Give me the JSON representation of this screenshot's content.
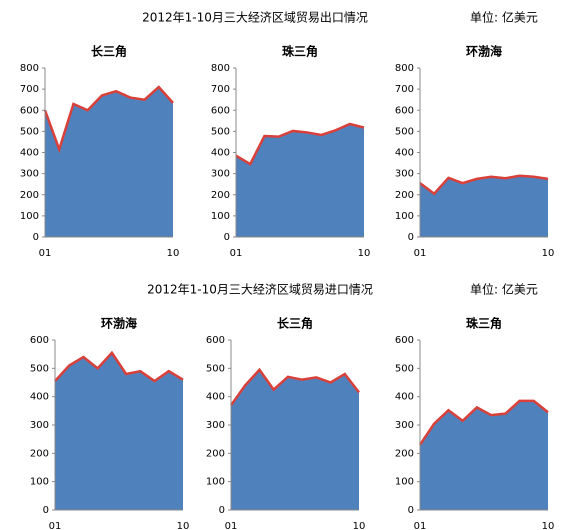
{
  "sections": [
    {
      "title": "2012年1-10月三大经济区域贸易出口情况",
      "unit": "单位:  亿美元"
    },
    {
      "title": "2012年1-10月三大经济区域贸易进口情况",
      "unit": "单位:  亿美元"
    }
  ],
  "chart_data": [
    {
      "type": "area",
      "title": "长三角",
      "categories": [
        "01",
        null,
        null,
        null,
        null,
        null,
        null,
        null,
        null,
        "10"
      ],
      "values": [
        600,
        415,
        630,
        600,
        670,
        690,
        660,
        650,
        710,
        635
      ],
      "color": "#4f81bd",
      "line_color": "#d9403a",
      "ylim": [
        0,
        800
      ],
      "yticks": [
        0,
        100,
        200,
        300,
        400,
        500,
        600,
        700,
        800
      ]
    },
    {
      "type": "area",
      "title": "珠三角",
      "categories": [
        "01",
        null,
        null,
        null,
        null,
        null,
        null,
        null,
        null,
        "10"
      ],
      "values": [
        385,
        345,
        478,
        475,
        502,
        495,
        483,
        505,
        535,
        518
      ],
      "color": "#4f81bd",
      "line_color": "#d9403a",
      "ylim": [
        0,
        800
      ],
      "yticks": [
        0,
        100,
        200,
        300,
        400,
        500,
        600,
        700,
        800
      ]
    },
    {
      "type": "area",
      "title": "环渤海",
      "categories": [
        "01",
        null,
        null,
        null,
        null,
        null,
        null,
        null,
        null,
        "10"
      ],
      "values": [
        255,
        205,
        280,
        255,
        275,
        285,
        278,
        290,
        285,
        275
      ],
      "color": "#4f81bd",
      "line_color": "#d9403a",
      "ylim": [
        0,
        800
      ],
      "yticks": [
        0,
        100,
        200,
        300,
        400,
        500,
        600,
        700,
        800
      ]
    },
    {
      "type": "area",
      "title": "环渤海",
      "categories": [
        "01",
        null,
        null,
        null,
        null,
        null,
        null,
        null,
        null,
        "10"
      ],
      "values": [
        455,
        510,
        540,
        500,
        555,
        480,
        490,
        455,
        490,
        460
      ],
      "color": "#4f81bd",
      "line_color": "#d9403a",
      "ylim": [
        0,
        600
      ],
      "yticks": [
        0,
        100,
        200,
        300,
        400,
        500,
        600
      ]
    },
    {
      "type": "area",
      "title": "长三角",
      "categories": [
        "01",
        null,
        null,
        null,
        null,
        null,
        null,
        null,
        null,
        "10"
      ],
      "values": [
        370,
        440,
        495,
        425,
        470,
        460,
        468,
        450,
        480,
        415
      ],
      "color": "#4f81bd",
      "line_color": "#d9403a",
      "ylim": [
        0,
        600
      ],
      "yticks": [
        0,
        100,
        200,
        300,
        400,
        500,
        600
      ]
    },
    {
      "type": "area",
      "title": "珠三角",
      "categories": [
        "01",
        null,
        null,
        null,
        null,
        null,
        null,
        null,
        null,
        "10"
      ],
      "values": [
        230,
        305,
        352,
        315,
        362,
        335,
        340,
        385,
        385,
        345
      ],
      "color": "#4f81bd",
      "line_color": "#d9403a",
      "ylim": [
        0,
        600
      ],
      "yticks": [
        0,
        100,
        200,
        300,
        400,
        500,
        600
      ]
    }
  ]
}
